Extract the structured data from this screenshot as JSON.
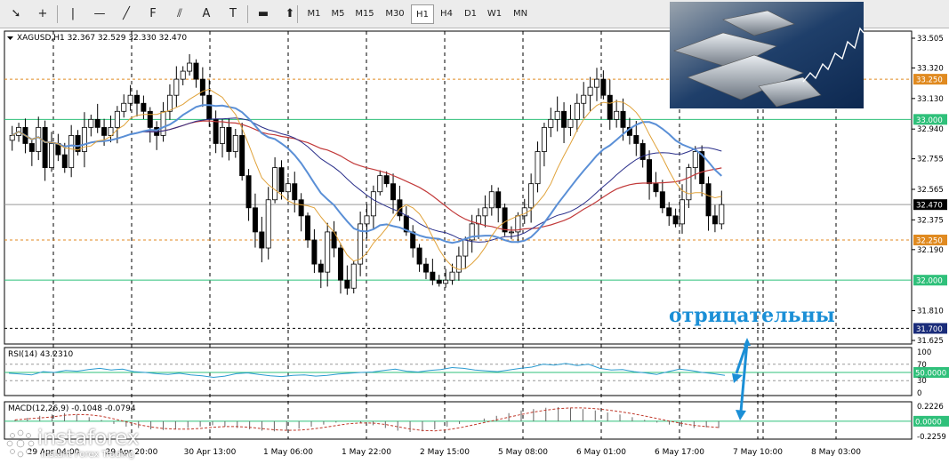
{
  "toolbar": {
    "tools": [
      {
        "name": "cursor-icon",
        "glyph": "➘"
      },
      {
        "name": "crosshair-icon",
        "glyph": "+"
      },
      {
        "name": "vertical-line-icon",
        "glyph": "|"
      },
      {
        "name": "horizontal-line-icon",
        "glyph": "—"
      },
      {
        "name": "trendline-icon",
        "glyph": "╱"
      },
      {
        "name": "fibonacci-icon",
        "glyph": "F"
      },
      {
        "name": "channel-icon",
        "glyph": "⫽"
      },
      {
        "name": "text-icon",
        "glyph": "A"
      },
      {
        "name": "label-icon",
        "glyph": "T"
      },
      {
        "name": "shapes-icon",
        "glyph": "▬"
      },
      {
        "name": "arrows-icon",
        "glyph": "⬆"
      }
    ],
    "timeframes": [
      "M1",
      "M5",
      "M15",
      "M30",
      "H1",
      "H4",
      "D1",
      "W1",
      "MN"
    ],
    "active_timeframe": "H1"
  },
  "chart_info": {
    "header": "XAGUSD,H1  32.367 32.529 32.330 32.470",
    "overlay_text": "отрицательны"
  },
  "colors": {
    "candle": "#000000",
    "ma_fast": "#e0a23a",
    "ma_mid": "#5a8fd6",
    "ma_slow": "#c23a3a",
    "ma_long": "#2a2f8a",
    "green_level": "#2fc07a",
    "orange_level": "#e08a20",
    "rsi_line": "#2a9bd0",
    "macd_line": "#c0392b",
    "overlay_text": "#1b8fd6",
    "price_box": "#000000"
  },
  "chart_data": [
    {
      "type": "candlestick",
      "title": "XAGUSD,H1",
      "ohlc_last": {
        "open": 32.367,
        "high": 32.529,
        "low": 32.33,
        "close": 32.47
      },
      "ylim": [
        31.625,
        33.505
      ],
      "y_ticks": [
        "33.505",
        "33.320",
        "33.130",
        "32.940",
        "32.755",
        "32.565",
        "32.375",
        "32.190",
        "31.810",
        "31.625"
      ],
      "x_ticks": [
        "29 Apr 04:00",
        "29 Apr 20:00",
        "30 Apr 13:00",
        "1 May 06:00",
        "1 May 22:00",
        "2 May 15:00",
        "5 May 08:00",
        "6 May 01:00",
        "6 May 17:00",
        "7 May 10:00",
        "8 May 03:00"
      ],
      "levels": [
        {
          "value": 33.25,
          "label": "33.250",
          "style": "orange-dashed"
        },
        {
          "value": 33.0,
          "label": "33.000",
          "style": "green"
        },
        {
          "value": 32.47,
          "label": "32.470",
          "style": "current-price"
        },
        {
          "value": 32.25,
          "label": "32.250",
          "style": "orange-dashed"
        },
        {
          "value": 32.0,
          "label": "32.000",
          "style": "green"
        },
        {
          "value": 31.7,
          "label": "31.700",
          "style": "black-dashed"
        }
      ],
      "close_series": [
        32.9,
        32.95,
        32.85,
        32.8,
        32.95,
        32.7,
        32.85,
        32.78,
        32.7,
        32.9,
        32.8,
        32.95,
        33.0,
        32.95,
        32.9,
        32.95,
        33.05,
        33.1,
        33.15,
        33.1,
        33.05,
        32.95,
        32.9,
        33.05,
        33.15,
        33.25,
        33.3,
        33.35,
        33.25,
        33.15,
        33.0,
        32.85,
        32.95,
        32.8,
        32.9,
        32.65,
        32.45,
        32.3,
        32.2,
        32.5,
        32.7,
        32.55,
        32.6,
        32.5,
        32.4,
        32.25,
        32.1,
        32.05,
        32.3,
        32.2,
        32.0,
        31.95,
        32.1,
        32.35,
        32.4,
        32.55,
        32.65,
        32.6,
        32.5,
        32.4,
        32.3,
        32.2,
        32.1,
        32.05,
        32.0,
        31.98,
        32.0,
        32.05,
        32.15,
        32.25,
        32.35,
        32.4,
        32.45,
        32.55,
        32.45,
        32.3,
        32.3,
        32.4,
        32.45,
        32.6,
        32.8,
        32.95,
        33.0,
        33.05,
        32.95,
        33.0,
        33.1,
        33.15,
        33.2,
        33.25,
        33.15,
        33.0,
        33.05,
        32.95,
        32.9,
        32.85,
        32.75,
        32.6,
        32.55,
        32.45,
        32.4,
        32.35,
        32.5,
        32.7,
        32.8,
        32.6,
        32.4,
        32.35,
        32.47
      ]
    },
    {
      "type": "line",
      "title": "RSI(14) 43.2310",
      "ylim": [
        0,
        100
      ],
      "y_ticks": [
        "100",
        "70",
        "50.0000",
        "30",
        "0"
      ],
      "values": [
        48,
        46,
        44,
        52,
        50,
        55,
        53,
        57,
        60,
        56,
        58,
        52,
        50,
        47,
        45,
        48,
        44,
        42,
        38,
        41,
        47,
        49,
        45,
        42,
        40,
        43,
        44,
        41,
        43,
        46,
        48,
        50,
        51,
        55,
        58,
        53,
        51,
        55,
        57,
        62,
        60,
        56,
        54,
        52,
        56,
        60,
        63,
        70,
        68,
        72,
        67,
        70,
        60,
        56,
        57,
        52,
        49,
        45,
        52,
        58,
        55,
        50,
        47,
        43
      ]
    },
    {
      "type": "bar",
      "title": "MACD(12,26,9) -0.1048 -0.0794",
      "ylim": [
        -0.2259,
        0.2226
      ],
      "y_ticks": [
        "0.2226",
        "0.0000",
        "-0.2259"
      ],
      "values": [
        0.02,
        0.05,
        0.08,
        0.1,
        0.12,
        0.1,
        0.06,
        0.02,
        -0.04,
        -0.08,
        -0.1,
        -0.12,
        -0.13,
        -0.12,
        -0.1,
        -0.08,
        -0.06,
        -0.08,
        -0.1,
        -0.12,
        -0.14,
        -0.15,
        -0.13,
        -0.11,
        -0.08,
        -0.05,
        -0.02,
        0.0,
        -0.03,
        -0.06,
        -0.1,
        -0.14,
        -0.16,
        -0.15,
        -0.12,
        -0.08,
        -0.04,
        0.0,
        0.04,
        0.08,
        0.12,
        0.16,
        0.18,
        0.2,
        0.21,
        0.2,
        0.18,
        0.16,
        0.13,
        0.1,
        0.06,
        0.02,
        -0.02,
        -0.05,
        -0.08,
        -0.1,
        -0.09,
        -0.1
      ]
    }
  ],
  "branding": {
    "logo_text": "instaforex",
    "logo_sub": "Instant Forex Trading"
  }
}
